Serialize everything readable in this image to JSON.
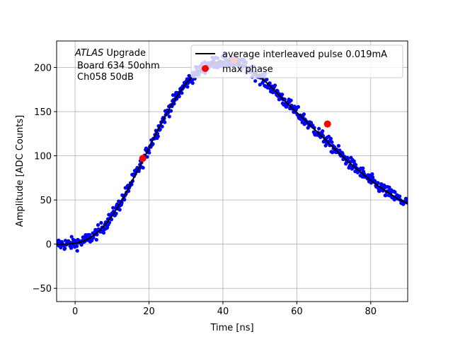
{
  "chart_data": {
    "type": "scatter",
    "xlabel": "Time [ns]",
    "ylabel": "Amplitude [ADC Counts]",
    "xlim": [
      -5,
      90
    ],
    "ylim": [
      -65,
      230
    ],
    "xticks": [
      0,
      20,
      40,
      60,
      80
    ],
    "xtick_labels": [
      "0",
      "20",
      "40",
      "60",
      "80"
    ],
    "yticks": [
      -50,
      0,
      50,
      100,
      150,
      200
    ],
    "ytick_labels": [
      "−50",
      "0",
      "50",
      "100",
      "150",
      "200"
    ],
    "grid": true,
    "legend_placement": "top-right",
    "annotation": {
      "italic": "ATLAS",
      "line1_rest": " Upgrade",
      "line2": "Board 634 50ohm",
      "line3": "Ch058 50dB"
    },
    "series": [
      {
        "name": "average interleaved pulse 0.019mA",
        "kind": "line",
        "color": "#000000",
        "x": [
          -5,
          -2,
          0,
          2,
          4,
          6,
          8,
          10,
          12,
          14,
          16,
          18,
          20,
          22,
          24,
          26,
          28,
          30,
          32,
          34,
          36,
          38,
          40,
          42,
          44,
          46,
          48,
          50,
          52,
          54,
          56,
          58,
          60,
          62,
          64,
          66,
          68,
          70,
          72,
          74,
          76,
          78,
          80,
          82,
          84,
          86,
          88,
          90
        ],
        "y": [
          0,
          0,
          1,
          3,
          7,
          13,
          21,
          32,
          45,
          60,
          76,
          92,
          109,
          126,
          142,
          157,
          170,
          182,
          191,
          198,
          203,
          206,
          207,
          207,
          205,
          201,
          196,
          189,
          182,
          174,
          165,
          157,
          149,
          141,
          133,
          125,
          117,
          109,
          101,
          93,
          86,
          79,
          72,
          66,
          60,
          55,
          50,
          46
        ]
      },
      {
        "name": "",
        "kind": "scatter-noisy",
        "color": "#0000ff",
        "note": "dense blue sample points along the averaged pulse, per-sample noise about ±7 ADC counts",
        "noise": 7
      },
      {
        "name": "max phase",
        "kind": "markers",
        "color": "#ff0000",
        "x": [
          18.3,
          43.0,
          68.3
        ],
        "y": [
          97,
          208,
          136
        ]
      }
    ]
  }
}
